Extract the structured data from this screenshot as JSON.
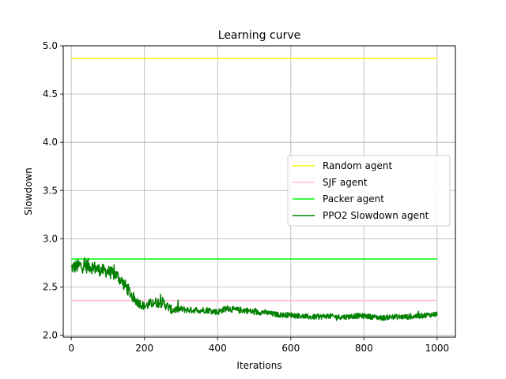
{
  "chart_data": {
    "type": "line",
    "title": "Learning curve",
    "xlabel": "Iterations",
    "ylabel": "Slowdown",
    "xlim": [
      -22,
      1050
    ],
    "ylim": [
      1.98,
      5.0
    ],
    "xticks": [
      0,
      200,
      400,
      600,
      800,
      1000
    ],
    "yticks": [
      2.0,
      2.5,
      3.0,
      3.5,
      4.0,
      4.5,
      5.0
    ],
    "xtick_labels": [
      "0",
      "200",
      "400",
      "600",
      "800",
      "1000"
    ],
    "ytick_labels": [
      "2.0",
      "2.5",
      "3.0",
      "3.5",
      "4.0",
      "4.5",
      "5.0"
    ],
    "grid": true,
    "legend_position": "center-right",
    "series": [
      {
        "name": "Random agent",
        "color": "#ffff00",
        "kind": "constant",
        "x": [
          0,
          1000
        ],
        "y": [
          4.87,
          4.87
        ]
      },
      {
        "name": "SJF agent",
        "color": "#ffc0cb",
        "kind": "constant",
        "x": [
          0,
          1000
        ],
        "y": [
          2.36,
          2.36
        ]
      },
      {
        "name": "Packer agent",
        "color": "#00ff00",
        "kind": "constant",
        "x": [
          0,
          1000
        ],
        "y": [
          2.79,
          2.79
        ]
      },
      {
        "name": "PPO2 Slowdown agent",
        "color": "#008000",
        "kind": "noisy",
        "x": [
          0,
          25,
          50,
          75,
          100,
          125,
          150,
          175,
          200,
          225,
          250,
          275,
          300,
          325,
          350,
          375,
          400,
          425,
          450,
          475,
          500,
          525,
          550,
          575,
          600,
          625,
          650,
          675,
          700,
          725,
          750,
          775,
          800,
          825,
          850,
          875,
          900,
          925,
          950,
          975,
          1000
        ],
        "y": [
          2.7,
          2.72,
          2.72,
          2.68,
          2.66,
          2.62,
          2.5,
          2.36,
          2.3,
          2.34,
          2.34,
          2.26,
          2.27,
          2.26,
          2.26,
          2.26,
          2.24,
          2.28,
          2.26,
          2.26,
          2.24,
          2.24,
          2.22,
          2.21,
          2.21,
          2.2,
          2.19,
          2.19,
          2.2,
          2.19,
          2.19,
          2.2,
          2.2,
          2.19,
          2.18,
          2.19,
          2.19,
          2.19,
          2.2,
          2.21,
          2.22
        ],
        "noise": [
          0.06,
          0.07,
          0.07,
          0.06,
          0.06,
          0.06,
          0.06,
          0.05,
          0.04,
          0.05,
          0.05,
          0.04,
          0.03,
          0.03,
          0.03,
          0.03,
          0.03,
          0.03,
          0.03,
          0.03,
          0.03,
          0.025,
          0.025,
          0.025,
          0.025,
          0.025,
          0.025,
          0.025,
          0.025,
          0.025,
          0.025,
          0.025,
          0.025,
          0.025,
          0.025,
          0.025,
          0.025,
          0.025,
          0.025,
          0.025,
          0.025
        ]
      }
    ]
  }
}
